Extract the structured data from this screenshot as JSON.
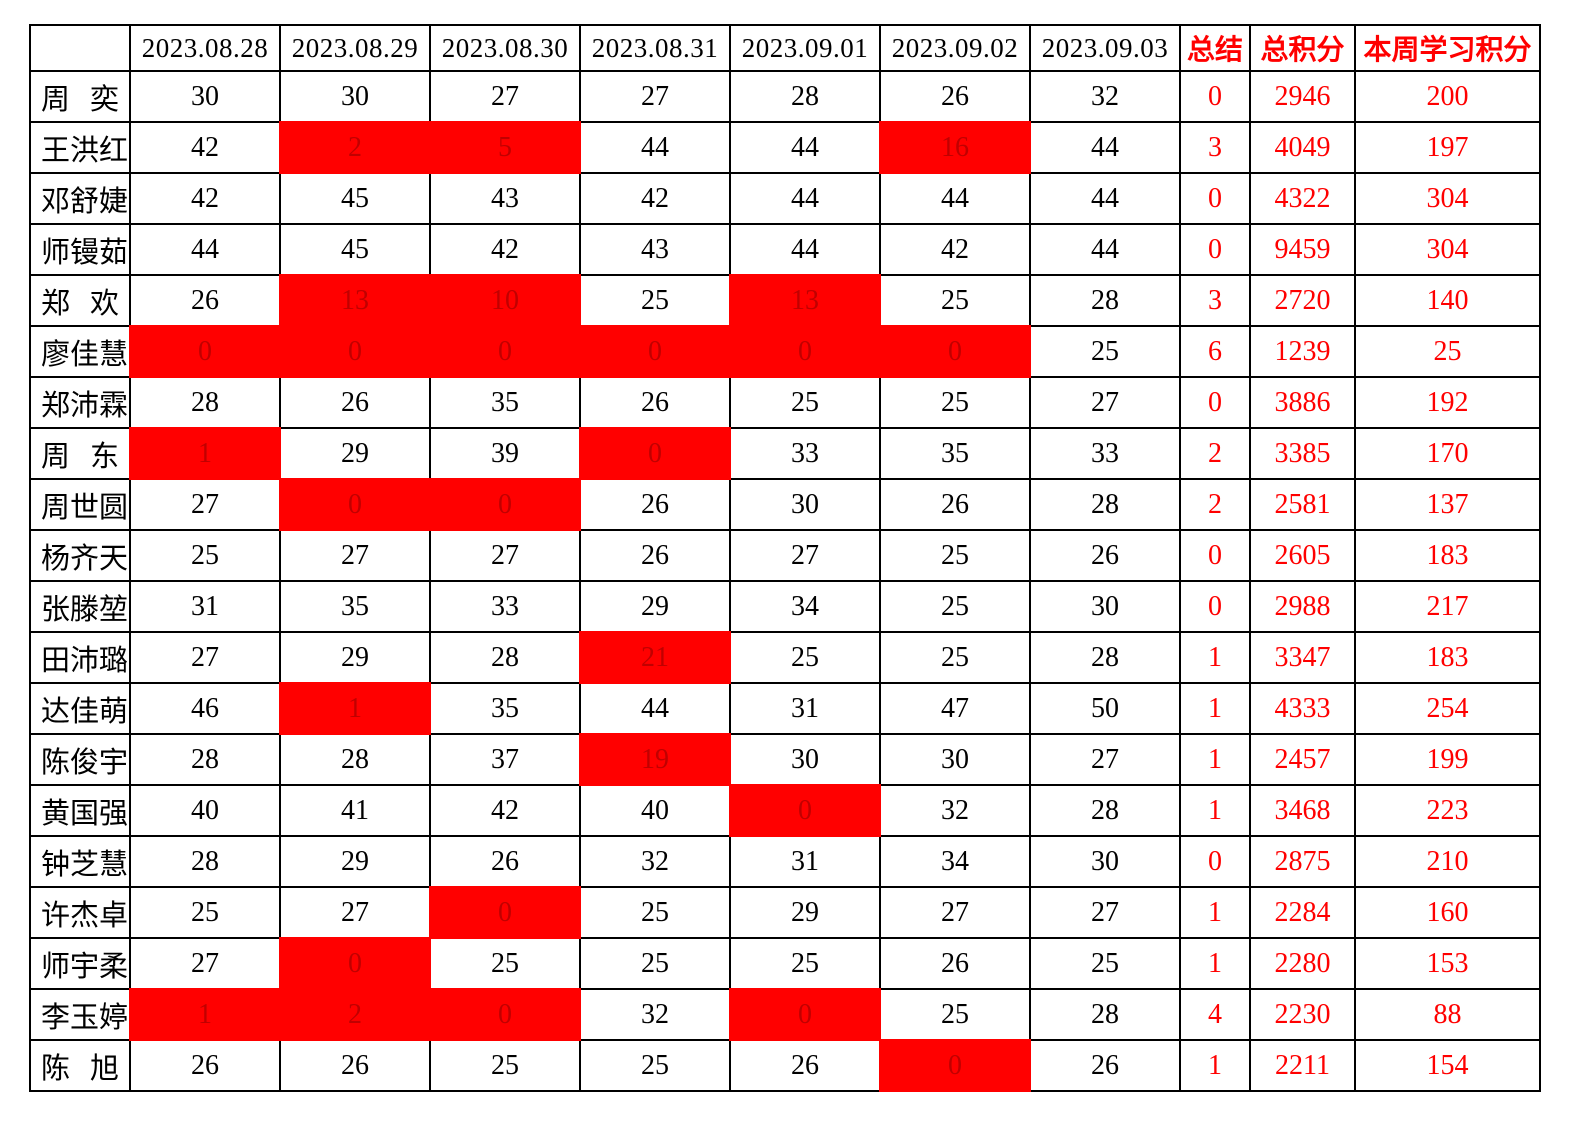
{
  "table": {
    "corner_label": "",
    "date_columns": [
      "2023.08.28",
      "2023.08.29",
      "2023.08.30",
      "2023.08.31",
      "2023.09.01",
      "2023.09.02",
      "2023.09.03"
    ],
    "summary_columns": [
      "总结",
      "总积分",
      "本周学习积分"
    ],
    "rows": [
      {
        "name": "周奕",
        "days": [
          30,
          30,
          27,
          27,
          28,
          26,
          32
        ],
        "red": [],
        "summary": 0,
        "total": 2946,
        "week": 200
      },
      {
        "name": "王洪红",
        "days": [
          42,
          2,
          5,
          44,
          44,
          16,
          44
        ],
        "red": [
          1,
          2,
          5
        ],
        "summary": 3,
        "total": 4049,
        "week": 197
      },
      {
        "name": "邓舒婕",
        "days": [
          42,
          45,
          43,
          42,
          44,
          44,
          44
        ],
        "red": [],
        "summary": 0,
        "total": 4322,
        "week": 304
      },
      {
        "name": "师镘茹",
        "days": [
          44,
          45,
          42,
          43,
          44,
          42,
          44
        ],
        "red": [],
        "summary": 0,
        "total": 9459,
        "week": 304
      },
      {
        "name": "郑欢",
        "days": [
          26,
          13,
          10,
          25,
          13,
          25,
          28
        ],
        "red": [
          1,
          2,
          4
        ],
        "summary": 3,
        "total": 2720,
        "week": 140
      },
      {
        "name": "廖佳慧",
        "days": [
          0,
          0,
          0,
          0,
          0,
          0,
          25
        ],
        "red": [
          0,
          1,
          2,
          3,
          4,
          5
        ],
        "summary": 6,
        "total": 1239,
        "week": 25
      },
      {
        "name": "郑沛霖",
        "days": [
          28,
          26,
          35,
          26,
          25,
          25,
          27
        ],
        "red": [],
        "summary": 0,
        "total": 3886,
        "week": 192
      },
      {
        "name": "周东",
        "days": [
          1,
          29,
          39,
          0,
          33,
          35,
          33
        ],
        "red": [
          0,
          3
        ],
        "summary": 2,
        "total": 3385,
        "week": 170
      },
      {
        "name": "周世圆",
        "days": [
          27,
          0,
          0,
          26,
          30,
          26,
          28
        ],
        "red": [
          1,
          2
        ],
        "summary": 2,
        "total": 2581,
        "week": 137
      },
      {
        "name": "杨齐天",
        "days": [
          25,
          27,
          27,
          26,
          27,
          25,
          26
        ],
        "red": [],
        "summary": 0,
        "total": 2605,
        "week": 183
      },
      {
        "name": "张滕堃",
        "days": [
          31,
          35,
          33,
          29,
          34,
          25,
          30
        ],
        "red": [],
        "summary": 0,
        "total": 2988,
        "week": 217
      },
      {
        "name": "田沛璐",
        "days": [
          27,
          29,
          28,
          21,
          25,
          25,
          28
        ],
        "red": [
          3
        ],
        "summary": 1,
        "total": 3347,
        "week": 183
      },
      {
        "name": "达佳萌",
        "days": [
          46,
          1,
          35,
          44,
          31,
          47,
          50
        ],
        "red": [
          1
        ],
        "summary": 1,
        "total": 4333,
        "week": 254
      },
      {
        "name": "陈俊宇",
        "days": [
          28,
          28,
          37,
          19,
          30,
          30,
          27
        ],
        "red": [
          3
        ],
        "summary": 1,
        "total": 2457,
        "week": 199
      },
      {
        "name": "黄国强",
        "days": [
          40,
          41,
          42,
          40,
          0,
          32,
          28
        ],
        "red": [
          4
        ],
        "summary": 1,
        "total": 3468,
        "week": 223
      },
      {
        "name": "钟芝慧",
        "days": [
          28,
          29,
          26,
          32,
          31,
          34,
          30
        ],
        "red": [],
        "summary": 0,
        "total": 2875,
        "week": 210
      },
      {
        "name": "许杰卓",
        "days": [
          25,
          27,
          0,
          25,
          29,
          27,
          27
        ],
        "red": [
          2
        ],
        "summary": 1,
        "total": 2284,
        "week": 160
      },
      {
        "name": "师宇柔",
        "days": [
          27,
          0,
          25,
          25,
          25,
          26,
          25
        ],
        "red": [
          1
        ],
        "summary": 1,
        "total": 2280,
        "week": 153
      },
      {
        "name": "李玉婷",
        "days": [
          1,
          2,
          0,
          32,
          0,
          25,
          28
        ],
        "red": [
          0,
          1,
          2,
          4
        ],
        "summary": 4,
        "total": 2230,
        "week": 88
      },
      {
        "name": "陈旭",
        "days": [
          26,
          26,
          25,
          25,
          26,
          0,
          26
        ],
        "red": [
          5
        ],
        "summary": 1,
        "total": 2211,
        "week": 154
      }
    ]
  },
  "colors": {
    "highlight_bg": "#ff0000",
    "highlight_text": "#c00000",
    "accent_text": "#ff0000",
    "grid": "#000000",
    "cell_text": "#000000",
    "background": "#ffffff"
  }
}
